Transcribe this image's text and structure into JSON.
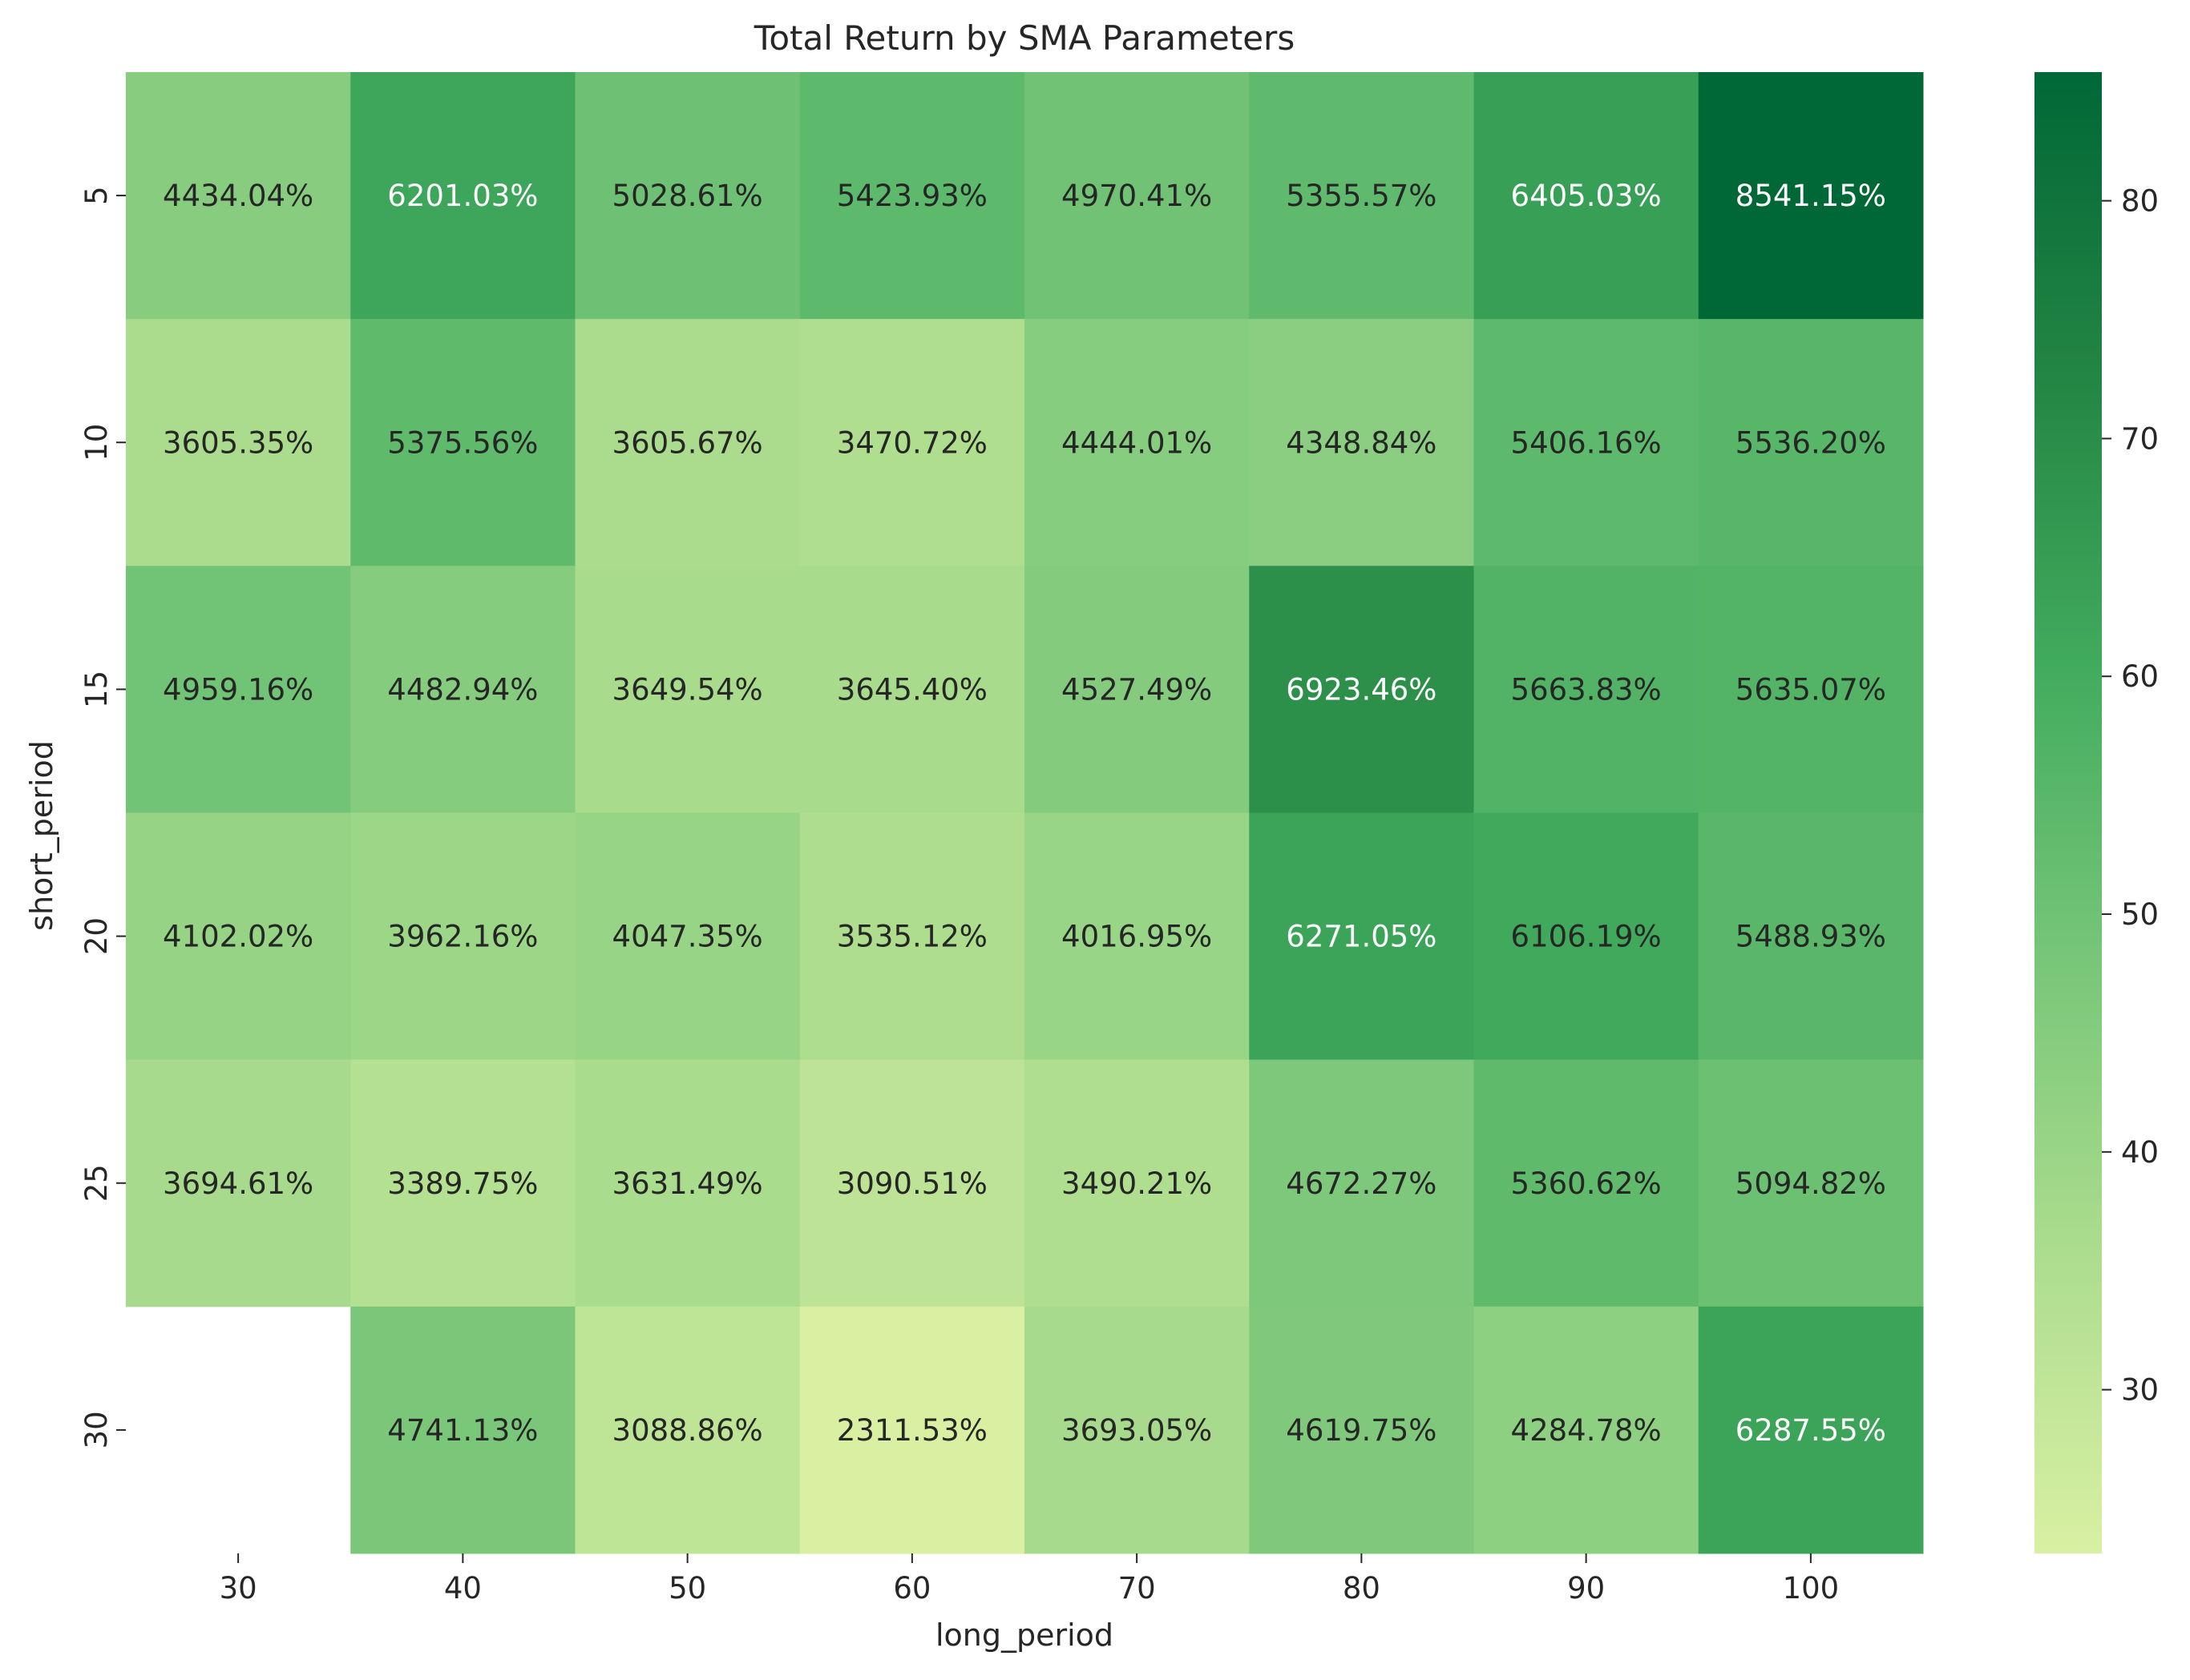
{
  "chart_data": {
    "type": "heatmap",
    "title": "Total Return by SMA Parameters",
    "xlabel": "long_period",
    "ylabel": "short_period",
    "x": [
      "30",
      "40",
      "50",
      "60",
      "70",
      "80",
      "90",
      "100"
    ],
    "y": [
      "5",
      "10",
      "15",
      "20",
      "25",
      "30"
    ],
    "values": [
      [
        44.3404,
        62.0103,
        50.2861,
        54.2393,
        49.7041,
        53.5557,
        64.0503,
        85.4115
      ],
      [
        36.0535,
        53.7556,
        36.0567,
        34.7072,
        44.4401,
        43.4884,
        54.0616,
        55.362
      ],
      [
        49.5916,
        44.8294,
        36.4954,
        36.454,
        45.2749,
        69.2346,
        56.6383,
        56.3507
      ],
      [
        41.0202,
        39.6216,
        40.4735,
        35.3512,
        40.1695,
        62.7105,
        61.0619,
        54.8893
      ],
      [
        36.9461,
        33.8975,
        36.3149,
        30.9051,
        34.9021,
        46.7227,
        53.6062,
        50.9482
      ],
      [
        null,
        47.4113,
        30.8886,
        23.1153,
        36.9305,
        46.1975,
        42.8478,
        62.8755
      ]
    ],
    "annotations": [
      [
        "4434.04%",
        "6201.03%",
        "5028.61%",
        "5423.93%",
        "4970.41%",
        "5355.57%",
        "6405.03%",
        "8541.15%"
      ],
      [
        "3605.35%",
        "5375.56%",
        "3605.67%",
        "3470.72%",
        "4444.01%",
        "4348.84%",
        "5406.16%",
        "5536.20%"
      ],
      [
        "4959.16%",
        "4482.94%",
        "3649.54%",
        "3645.40%",
        "4527.49%",
        "6923.46%",
        "5663.83%",
        "5635.07%"
      ],
      [
        "4102.02%",
        "3962.16%",
        "4047.35%",
        "3535.12%",
        "4016.95%",
        "6271.05%",
        "6106.19%",
        "5488.93%"
      ],
      [
        "3694.61%",
        "3389.75%",
        "3631.49%",
        "3090.51%",
        "3490.21%",
        "4672.27%",
        "5360.62%",
        "5094.82%"
      ],
      [
        "",
        "4741.13%",
        "3088.86%",
        "2311.53%",
        "3693.05%",
        "4619.75%",
        "4284.78%",
        "6287.55%"
      ]
    ],
    "colorbar": {
      "ticks": [
        30,
        40,
        50,
        60,
        70,
        80
      ],
      "range": [
        23.1153,
        85.4115
      ]
    },
    "colormap": [
      "#d9f0a3",
      "#addd8e",
      "#78c679",
      "#41ab5d",
      "#238443",
      "#006837"
    ],
    "text_colors": {
      "dark": "#262626",
      "light": "#ffffff"
    }
  }
}
